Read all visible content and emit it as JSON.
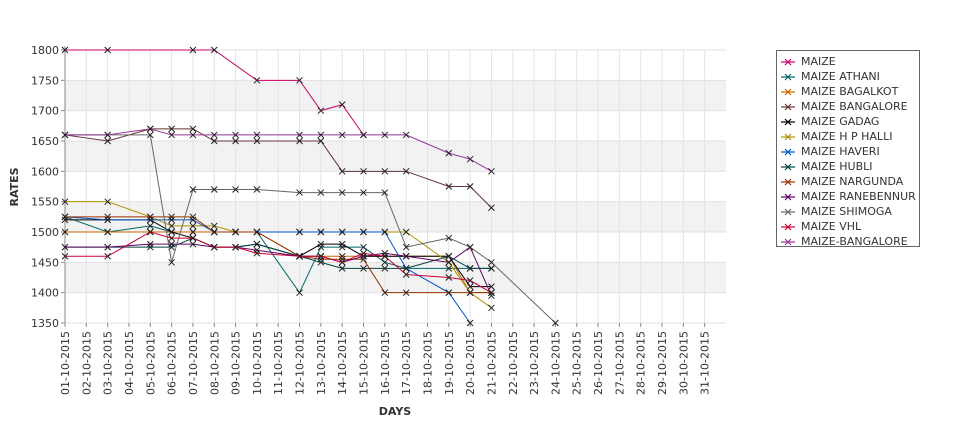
{
  "chart_data": {
    "type": "line",
    "title": "",
    "xlabel": "DAYS",
    "ylabel": "RATES",
    "ylim": [
      1350,
      1800
    ],
    "yticks": [
      1350,
      1400,
      1450,
      1500,
      1550,
      1600,
      1650,
      1700,
      1750,
      1800
    ],
    "grid": true,
    "legend_position": "right",
    "categories": [
      "01-10-2015",
      "02-10-2015",
      "03-10-2015",
      "04-10-2015",
      "05-10-2015",
      "06-10-2015",
      "07-10-2015",
      "08-10-2015",
      "09-10-2015",
      "10-10-2015",
      "11-10-2015",
      "12-10-2015",
      "13-10-2015",
      "14-10-2015",
      "15-10-2015",
      "16-10-2015",
      "17-10-2015",
      "18-10-2015",
      "19-10-2015",
      "20-10-2015",
      "21-10-2015",
      "22-10-2015",
      "23-10-2015",
      "24-10-2015",
      "25-10-2015",
      "26-10-2015",
      "27-10-2015",
      "28-10-2015",
      "29-10-2015",
      "30-10-2015",
      "31-10-2015"
    ],
    "series": [
      {
        "name": "MAIZE",
        "color": "#cc0066",
        "values": [
          1800,
          null,
          1800,
          null,
          null,
          null,
          1800,
          1800,
          null,
          1750,
          null,
          1750,
          1700,
          1710,
          1660,
          null,
          null,
          null,
          null,
          null,
          null,
          null,
          null,
          null,
          null,
          null,
          null,
          null,
          null,
          null,
          null
        ]
      },
      {
        "name": "MAIZE ATHANI",
        "color": "#006666",
        "values": [
          1525,
          null,
          1500,
          null,
          1510,
          1500,
          1500,
          1500,
          1500,
          1500,
          null,
          1400,
          1475,
          1475,
          1475,
          1450,
          1440,
          null,
          1440,
          1440,
          1440,
          null,
          null,
          null,
          null,
          null,
          null,
          null,
          null,
          null,
          null
        ]
      },
      {
        "name": "MAIZE BAGALKOT",
        "color": "#cc6600",
        "values": [
          1500,
          null,
          1500,
          null,
          1500,
          1500,
          1500,
          1500,
          1500,
          1500,
          null,
          1460,
          1460,
          1460,
          1460,
          1460,
          1460,
          null,
          1460,
          1400,
          1400,
          null,
          null,
          null,
          null,
          null,
          null,
          null,
          null,
          null,
          null
        ]
      },
      {
        "name": "MAIZE BANGALORE",
        "color": "#663333",
        "values": [
          1660,
          null,
          1650,
          null,
          1670,
          1670,
          1670,
          1650,
          1650,
          1650,
          null,
          1650,
          1650,
          1600,
          1600,
          1600,
          1600,
          null,
          1575,
          1575,
          1540,
          null,
          null,
          null,
          null,
          null,
          null,
          null,
          null,
          null,
          null
        ]
      },
      {
        "name": "MAIZE GADAG",
        "color": "#000000",
        "values": [
          1520,
          null,
          1520,
          null,
          1520,
          1500,
          1490,
          1475,
          1475,
          1480,
          null,
          1460,
          1480,
          1480,
          1460,
          1460,
          1460,
          null,
          1460,
          1410,
          1410,
          null,
          null,
          null,
          null,
          null,
          null,
          null,
          null,
          null,
          null
        ]
      },
      {
        "name": "MAIZE H P HALLI",
        "color": "#b38f00",
        "values": [
          1550,
          null,
          1550,
          null,
          1525,
          1510,
          1510,
          1510,
          1500,
          1500,
          null,
          1500,
          1500,
          1500,
          1500,
          1500,
          1500,
          null,
          1450,
          1400,
          1375,
          null,
          null,
          null,
          null,
          null,
          null,
          null,
          null,
          null,
          null
        ]
      },
      {
        "name": "MAIZE HAVERI",
        "color": "#0055cc",
        "values": [
          1525,
          null,
          1520,
          null,
          1520,
          1520,
          1520,
          1500,
          1500,
          1500,
          null,
          1500,
          1500,
          1500,
          1500,
          1500,
          1440,
          null,
          1400,
          1350,
          null,
          null,
          null,
          null,
          null,
          null,
          null,
          null,
          null,
          null,
          null
        ]
      },
      {
        "name": "MAIZE HUBLI",
        "color": "#004444",
        "values": [
          1475,
          null,
          1475,
          null,
          1475,
          1475,
          1490,
          1475,
          1475,
          1480,
          null,
          1460,
          1450,
          1440,
          1440,
          1440,
          1440,
          null,
          1460,
          1440,
          1440,
          null,
          null,
          null,
          null,
          null,
          null,
          null,
          null,
          null,
          null
        ]
      },
      {
        "name": "MAIZE NARGUNDA",
        "color": "#993300",
        "values": [
          1525,
          null,
          1525,
          null,
          1525,
          1525,
          1525,
          1500,
          1500,
          1500,
          null,
          1460,
          1455,
          1455,
          1455,
          1400,
          1400,
          null,
          1400,
          1400,
          1400,
          null,
          null,
          null,
          null,
          null,
          null,
          null,
          null,
          null,
          null
        ]
      },
      {
        "name": "MAIZE RANEBENNUR",
        "color": "#660066",
        "values": [
          1475,
          null,
          1475,
          null,
          1480,
          1480,
          1480,
          1475,
          1475,
          1470,
          null,
          1460,
          1460,
          1450,
          1460,
          1465,
          1460,
          null,
          1450,
          1475,
          1395,
          null,
          null,
          null,
          null,
          null,
          null,
          null,
          null,
          null,
          null
        ]
      },
      {
        "name": "MAIZE SHIMOGA",
        "color": "#666666",
        "values": [
          1660,
          null,
          1660,
          null,
          1660,
          1450,
          1570,
          1570,
          1570,
          1570,
          null,
          1565,
          1565,
          1565,
          1565,
          1565,
          1475,
          null,
          1490,
          1475,
          1450,
          null,
          null,
          1350,
          null,
          null,
          null,
          null,
          null,
          null,
          null
        ]
      },
      {
        "name": "MAIZE VHL",
        "color": "#cc0033",
        "values": [
          1460,
          null,
          1460,
          null,
          1500,
          1490,
          1490,
          1475,
          1475,
          1465,
          null,
          1460,
          1460,
          1450,
          1465,
          1460,
          1430,
          null,
          1425,
          1420,
          1400,
          null,
          null,
          null,
          null,
          null,
          null,
          null,
          null,
          null,
          null
        ]
      },
      {
        "name": "MAIZE-BANGALORE",
        "color": "#993399",
        "values": [
          1660,
          null,
          1660,
          null,
          1670,
          1660,
          1660,
          1660,
          1660,
          1660,
          null,
          1660,
          1660,
          1660,
          1660,
          1660,
          1660,
          null,
          1630,
          1620,
          1600,
          null,
          null,
          null,
          null,
          null,
          null,
          null,
          null,
          null,
          null
        ]
      }
    ]
  }
}
